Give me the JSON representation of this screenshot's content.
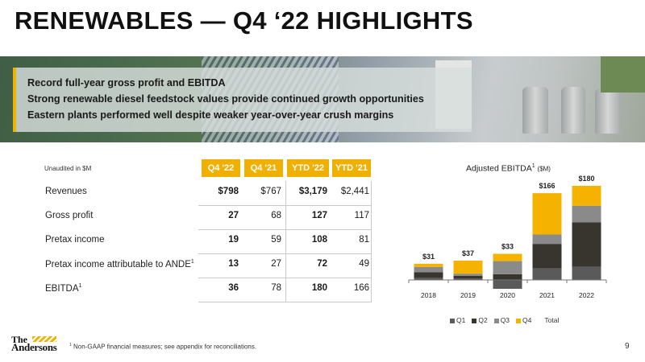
{
  "title": "RENEWABLES — Q4 ‘22 HIGHLIGHTS",
  "highlights": [
    "Record full-year gross profit and EBITDA",
    "Strong renewable diesel feedstock values provide continued growth opportunities",
    "Eastern plants performed well despite weaker year-over-year crush margins"
  ],
  "colors": {
    "accent": "#f0b000",
    "q1": "#5a5a5a",
    "q2": "#38352e",
    "q3": "#8a8a8a",
    "q4": "#f5b300"
  },
  "table": {
    "note": "Unaudited in $M",
    "headers": [
      "Q4 '22",
      "Q4 '21",
      "YTD '22",
      "YTD '21"
    ],
    "rows": [
      {
        "label": "Revenues",
        "sup": "",
        "values": [
          "$798",
          "$767",
          "$3,179",
          "$2,441"
        ]
      },
      {
        "label": "Gross profit",
        "sup": "",
        "values": [
          "27",
          "68",
          "127",
          "117"
        ]
      },
      {
        "label": "Pretax income",
        "sup": "",
        "values": [
          "19",
          "59",
          "108",
          "81"
        ]
      },
      {
        "label": "Pretax income attributable to ANDE",
        "sup": "1",
        "values": [
          "13",
          "27",
          "72",
          "49"
        ]
      },
      {
        "label": "EBITDA",
        "sup": "1",
        "values": [
          "36",
          "78",
          "180",
          "166"
        ]
      }
    ]
  },
  "chart_data": {
    "type": "bar",
    "stacked": true,
    "title": "Adjusted EBITDA",
    "title_sup": "1",
    "title_unit": "($M)",
    "categories": [
      "2018",
      "2019",
      "2020",
      "2021",
      "2022"
    ],
    "series": [
      {
        "name": "Q1",
        "values": [
          4,
          3,
          -17,
          22,
          25
        ]
      },
      {
        "name": "Q2",
        "values": [
          11,
          5,
          11,
          47,
          85
        ]
      },
      {
        "name": "Q3",
        "values": [
          10,
          4,
          25,
          18,
          32
        ]
      },
      {
        "name": "Q4",
        "values": [
          6,
          25,
          14,
          79,
          38
        ]
      }
    ],
    "totals": [
      31,
      37,
      33,
      166,
      180
    ],
    "total_labels": [
      "$31",
      "$37",
      "$33",
      "$166",
      "$180"
    ],
    "legend": [
      "Q1",
      "Q2",
      "Q3",
      "Q4",
      "Total"
    ],
    "legend_position": "bottom",
    "ylim": [
      -20,
      185
    ],
    "grid": false
  },
  "footer": {
    "logo_the": "The",
    "logo_name": "Andersons",
    "footnote_sup": "1",
    "footnote": "Non-GAAP financial measures; see appendix for reconciliations.",
    "page_number": "9"
  }
}
